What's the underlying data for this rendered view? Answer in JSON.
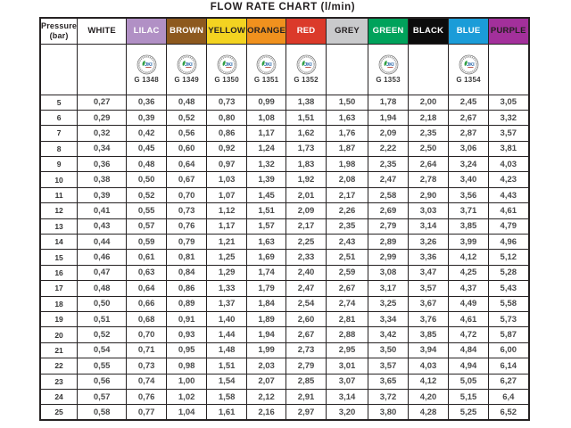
{
  "title": "FLOW RATE CHART (l/min)",
  "chart_data": {
    "type": "table",
    "title": "FLOW RATE CHART (l/min)",
    "row_header": {
      "line1": "Pressure",
      "line2": "(bar)"
    },
    "badge_text": "JKI",
    "columns": [
      {
        "label": "WHITE",
        "bg": "#ffffff",
        "fg": "#231f20",
        "cert": null
      },
      {
        "label": "LILAC",
        "bg": "#b190c5",
        "fg": "#ffffff",
        "cert": "G 1348"
      },
      {
        "label": "BROWN",
        "bg": "#8d591e",
        "fg": "#ffffff",
        "cert": "G 1349"
      },
      {
        "label": "YELLOW",
        "bg": "#f3d321",
        "fg": "#231f20",
        "cert": "G 1350"
      },
      {
        "label": "ORANGE",
        "bg": "#f0911e",
        "fg": "#231f20",
        "cert": "G 1351"
      },
      {
        "label": "RED",
        "bg": "#db3a2a",
        "fg": "#ffffff",
        "cert": "G 1352"
      },
      {
        "label": "GREY",
        "bg": "#c9cacc",
        "fg": "#231f20",
        "cert": null
      },
      {
        "label": "GREEN",
        "bg": "#00a25b",
        "fg": "#ffffff",
        "cert": "G 1353"
      },
      {
        "label": "BLACK",
        "bg": "#0c0c0c",
        "fg": "#ffffff",
        "cert": null
      },
      {
        "label": "BLUE",
        "bg": "#1b9cd8",
        "fg": "#ffffff",
        "cert": "G 1354"
      },
      {
        "label": "PURPLE",
        "bg": "#a3309b",
        "fg": "#231f20",
        "cert": null
      }
    ],
    "rows": [
      {
        "pressure": "5",
        "values": [
          "0,27",
          "0,36",
          "0,48",
          "0,73",
          "0,99",
          "1,38",
          "1,50",
          "1,78",
          "2,00",
          "2,45",
          "3,05"
        ]
      },
      {
        "pressure": "6",
        "values": [
          "0,29",
          "0,39",
          "0,52",
          "0,80",
          "1,08",
          "1,51",
          "1,63",
          "1,94",
          "2,18",
          "2,67",
          "3,32"
        ]
      },
      {
        "pressure": "7",
        "values": [
          "0,32",
          "0,42",
          "0,56",
          "0,86",
          "1,17",
          "1,62",
          "1,76",
          "2,09",
          "2,35",
          "2,87",
          "3,57"
        ]
      },
      {
        "pressure": "8",
        "values": [
          "0,34",
          "0,45",
          "0,60",
          "0,92",
          "1,24",
          "1,73",
          "1,87",
          "2,22",
          "2,50",
          "3,06",
          "3,81"
        ]
      },
      {
        "pressure": "9",
        "values": [
          "0,36",
          "0,48",
          "0,64",
          "0,97",
          "1,32",
          "1,83",
          "1,98",
          "2,35",
          "2,64",
          "3,24",
          "4,03"
        ]
      },
      {
        "pressure": "10",
        "values": [
          "0,38",
          "0,50",
          "0,67",
          "1,03",
          "1,39",
          "1,92",
          "2,08",
          "2,47",
          "2,78",
          "3,40",
          "4,23"
        ]
      },
      {
        "pressure": "11",
        "values": [
          "0,39",
          "0,52",
          "0,70",
          "1,07",
          "1,45",
          "2,01",
          "2,17",
          "2,58",
          "2,90",
          "3,56",
          "4,43"
        ]
      },
      {
        "pressure": "12",
        "values": [
          "0,41",
          "0,55",
          "0,73",
          "1,12",
          "1,51",
          "2,09",
          "2,26",
          "2,69",
          "3,03",
          "3,71",
          "4,61"
        ]
      },
      {
        "pressure": "13",
        "values": [
          "0,43",
          "0,57",
          "0,76",
          "1,17",
          "1,57",
          "2,17",
          "2,35",
          "2,79",
          "3,14",
          "3,85",
          "4,79"
        ]
      },
      {
        "pressure": "14",
        "values": [
          "0,44",
          "0,59",
          "0,79",
          "1,21",
          "1,63",
          "2,25",
          "2,43",
          "2,89",
          "3,26",
          "3,99",
          "4,96"
        ]
      },
      {
        "pressure": "15",
        "values": [
          "0,46",
          "0,61",
          "0,81",
          "1,25",
          "1,69",
          "2,33",
          "2,51",
          "2,99",
          "3,36",
          "4,12",
          "5,12"
        ]
      },
      {
        "pressure": "16",
        "values": [
          "0,47",
          "0,63",
          "0,84",
          "1,29",
          "1,74",
          "2,40",
          "2,59",
          "3,08",
          "3,47",
          "4,25",
          "5,28"
        ]
      },
      {
        "pressure": "17",
        "values": [
          "0,48",
          "0,64",
          "0,86",
          "1,33",
          "1,79",
          "2,47",
          "2,67",
          "3,17",
          "3,57",
          "4,37",
          "5,43"
        ]
      },
      {
        "pressure": "18",
        "values": [
          "0,50",
          "0,66",
          "0,89",
          "1,37",
          "1,84",
          "2,54",
          "2,74",
          "3,25",
          "3,67",
          "4,49",
          "5,58"
        ]
      },
      {
        "pressure": "19",
        "values": [
          "0,51",
          "0,68",
          "0,91",
          "1,40",
          "1,89",
          "2,60",
          "2,81",
          "3,34",
          "3,76",
          "4,61",
          "5,73"
        ]
      },
      {
        "pressure": "20",
        "values": [
          "0,52",
          "0,70",
          "0,93",
          "1,44",
          "1,94",
          "2,67",
          "2,88",
          "3,42",
          "3,85",
          "4,72",
          "5,87"
        ]
      },
      {
        "pressure": "21",
        "values": [
          "0,54",
          "0,71",
          "0,95",
          "1,48",
          "1,99",
          "2,73",
          "2,95",
          "3,50",
          "3,94",
          "4,84",
          "6,00"
        ]
      },
      {
        "pressure": "22",
        "values": [
          "0,55",
          "0,73",
          "0,98",
          "1,51",
          "2,03",
          "2,79",
          "3,01",
          "3,57",
          "4,03",
          "4,94",
          "6,14"
        ]
      },
      {
        "pressure": "23",
        "values": [
          "0,56",
          "0,74",
          "1,00",
          "1,54",
          "2,07",
          "2,85",
          "3,07",
          "3,65",
          "4,12",
          "5,05",
          "6,27"
        ]
      },
      {
        "pressure": "24",
        "values": [
          "0,57",
          "0,76",
          "1,02",
          "1,58",
          "2,12",
          "2,91",
          "3,14",
          "3,72",
          "4,20",
          "5,15",
          "6,4"
        ]
      },
      {
        "pressure": "25",
        "values": [
          "0,58",
          "0,77",
          "1,04",
          "1,61",
          "2,16",
          "2,97",
          "3,20",
          "3,80",
          "4,28",
          "5,25",
          "6,52"
        ]
      }
    ]
  }
}
